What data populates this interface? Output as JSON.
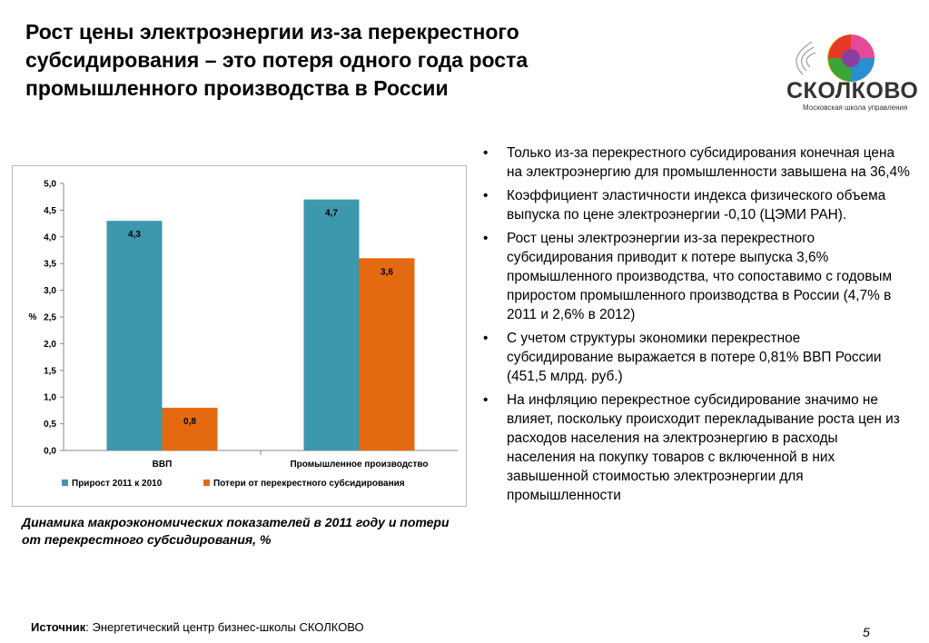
{
  "title": "Рост цены электроэнергии из-за перекрестного субсидирования – это потеря одного года роста промышленного производства в России",
  "logo": {
    "text": "СКОЛКОВО",
    "subtitle": "Московская школа управления"
  },
  "chart_data": {
    "type": "bar",
    "categories": [
      "ВВП",
      "Промышленное производство"
    ],
    "series": [
      {
        "name": "Прирост 2011 к 2010",
        "values": [
          4.3,
          4.7
        ],
        "labels": [
          "4,3",
          "4,7"
        ],
        "color": "#3d97ad"
      },
      {
        "name": "Потери от перекрестного субсидирования",
        "values": [
          0.8,
          3.6
        ],
        "labels": [
          "0,8",
          "3,6"
        ],
        "color": "#e46a12"
      }
    ],
    "ylabel": "%",
    "ylim": [
      0,
      5
    ],
    "yticks": [
      "0,0",
      "0,5",
      "1,0",
      "1,5",
      "2,0",
      "2,5",
      "3,0",
      "3,5",
      "4,0",
      "4,5",
      "5,0"
    ],
    "grid": false,
    "legend": "bottom"
  },
  "caption": "Динамика макроэкономических показателей в 2011 году и потери от перекрестного субсидирования, %",
  "bullets": [
    "Только из-за перекрестного субсидирования конечная цена на электроэнергию для промышленности завышена на 36,4%",
    "Коэффициент эластичности индекса физического объема выпуска по цене электроэнергии -0,10 (ЦЭМИ РАН).",
    "Рост цены электроэнергии из-за перекрестного субсидирования приводит к потере выпуска 3,6% промышленного производства, что сопоставимо с годовым приростом промышленного производства в России (4,7% в 2011 и 2,6% в 2012)",
    "С учетом структуры экономики перекрестное субсидирование выражается в потере 0,81% ВВП России (451,5 млрд. руб.)",
    "На инфляцию перекрестное субсидирование значимо не влияет, поскольку происходит перекладывание роста цен из расходов населения на электроэнергию в расходы населения на покупку товаров с включенной в них завышенной стоимостью электроэнергии для промышленности"
  ],
  "bullet_char": "•",
  "source": {
    "label": "Источник",
    "text": ": Энергетический центр бизнес-школы СКОЛКОВО"
  },
  "page_number": "5"
}
